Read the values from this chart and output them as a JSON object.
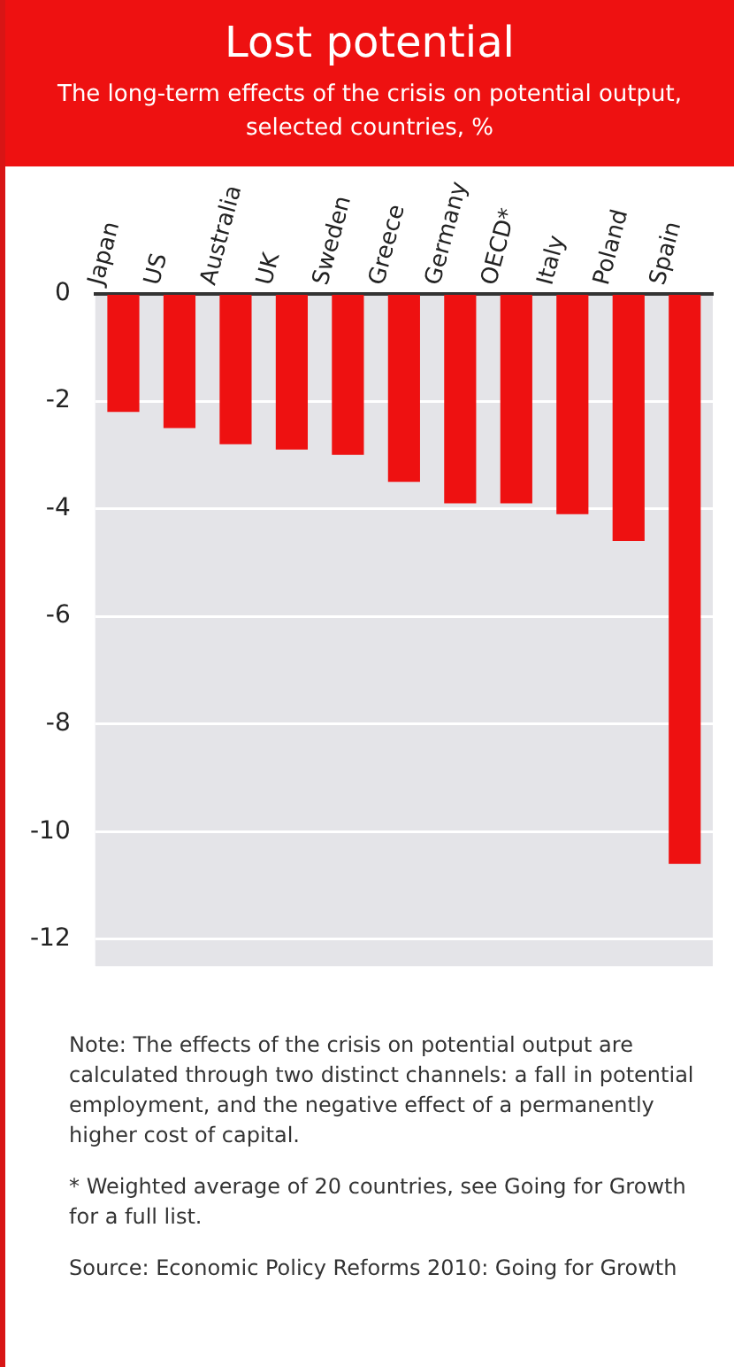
{
  "chart_data": {
    "type": "bar",
    "title": "Lost potential",
    "subtitle": "The long-term effects of the crisis on potential output, selected countries, %",
    "categories": [
      "Japan",
      "US",
      "Australia",
      "UK",
      "Sweden",
      "Greece",
      "Germany",
      "OECD*",
      "Italy",
      "Poland",
      "Spain"
    ],
    "values": [
      -2.2,
      -2.5,
      -2.8,
      -2.9,
      -3.0,
      -3.5,
      -3.9,
      -3.9,
      -4.1,
      -4.6,
      -10.6
    ],
    "color": "#ee1111",
    "ylim": [
      -12.5,
      0
    ],
    "yticks": [
      -12,
      -10,
      -8,
      -6,
      -4,
      -2,
      0
    ],
    "grid": "y",
    "annotations": [
      "Note: The effects of the crisis on potential output are calculated through two distinct channels: a fall in potential employment, and the negative effect of a permanently higher cost of capital.",
      "* Weighted average of 20 countries, see Going for Growth for a full list.",
      "Source: Economic Policy Reforms 2010: Going for Growth"
    ]
  }
}
